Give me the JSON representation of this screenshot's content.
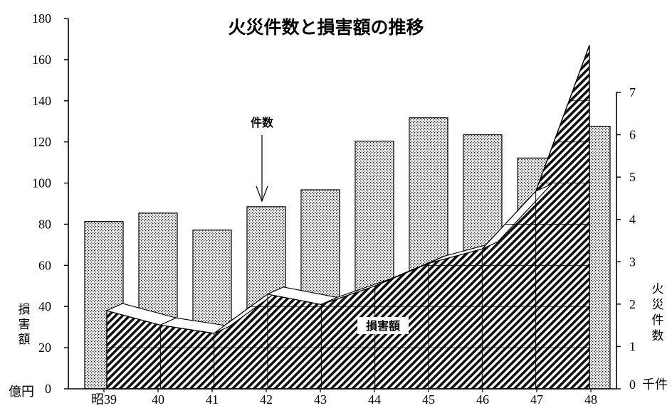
{
  "chart_data": {
    "type": "bar",
    "title": "火災件数と損害額の推移",
    "categories": [
      "昭39",
      "40",
      "41",
      "42",
      "43",
      "44",
      "45",
      "46",
      "47",
      "48"
    ],
    "series": [
      {
        "name": "件数",
        "type": "bar",
        "axis": "right",
        "unit": "千件",
        "values": [
          3.95,
          4.15,
          3.75,
          4.3,
          4.7,
          5.85,
          6.4,
          6.0,
          5.45,
          6.2
        ]
      },
      {
        "name": "損害額",
        "type": "area",
        "axis": "left",
        "unit": "億円",
        "values": [
          38,
          31,
          27,
          46,
          41,
          50,
          61,
          68,
          96,
          167
        ]
      }
    ],
    "left_axis": {
      "label": "損害額",
      "unit": "億円",
      "ylim": [
        0,
        180
      ],
      "ticks": [
        "0",
        "20",
        "40",
        "60",
        "80",
        "100",
        "120",
        "140",
        "160",
        "180"
      ]
    },
    "right_axis": {
      "label": "火災件数",
      "unit": "千件",
      "ylim": [
        0,
        7
      ],
      "ticks": [
        "0",
        "1",
        "2",
        "3",
        "4",
        "5",
        "6",
        "7"
      ]
    },
    "annotations": {
      "bar_series_label": "件数",
      "area_series_label": "損害額"
    },
    "grid": false,
    "legend": "none"
  }
}
